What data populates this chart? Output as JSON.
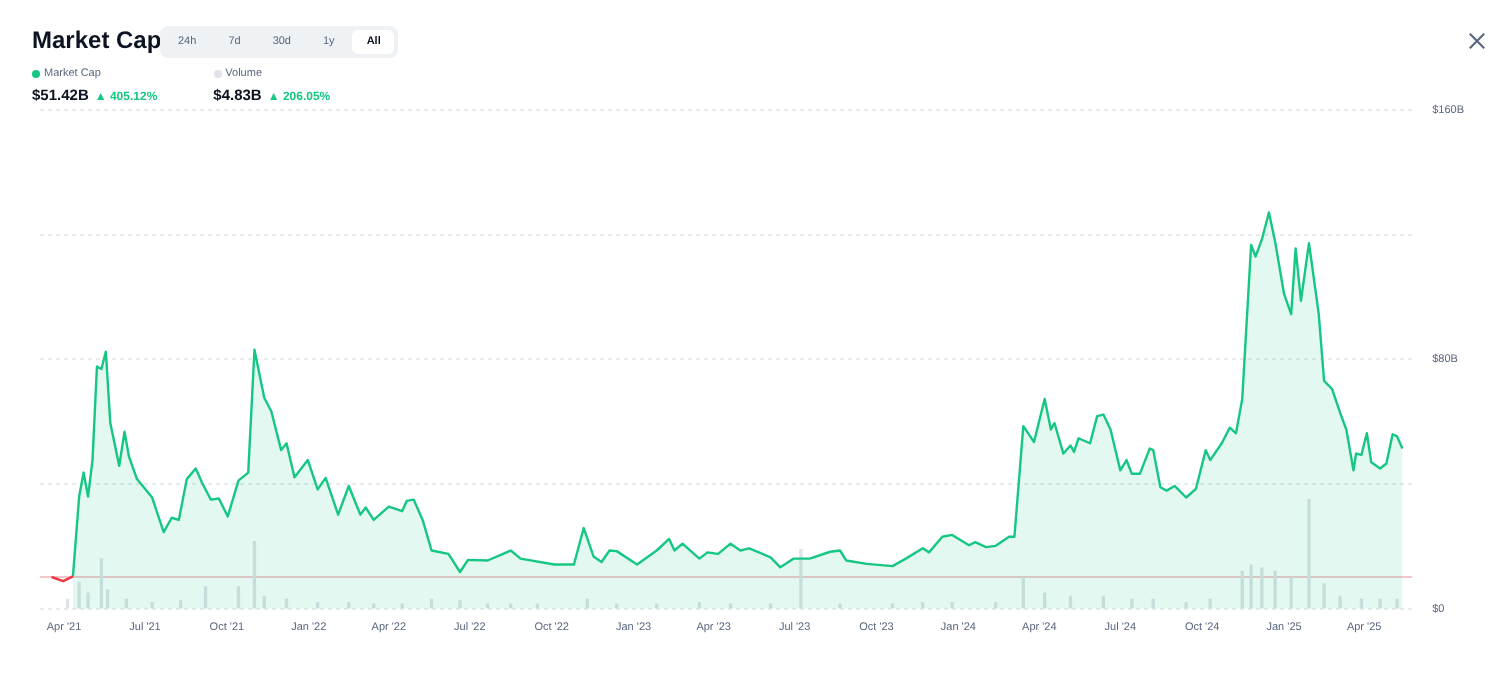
{
  "chart_data": {
    "type": "area",
    "title": "Market Cap",
    "annotations": [
      "24h",
      "7d",
      "30d",
      "1y",
      "All",
      "$51.42B",
      "▲ 405.12%",
      "$4.83B",
      "▲ 206.05%"
    ],
    "xlim": [
      "2021-03-05",
      "2025-05-25"
    ],
    "xticks": [
      {
        "value": "2021-04-01",
        "label": "Apr '21"
      },
      {
        "value": "2021-07-01",
        "label": "Jul '21"
      },
      {
        "value": "2021-10-01",
        "label": "Oct '21"
      },
      {
        "value": "2022-01-01",
        "label": "Jan '22"
      },
      {
        "value": "2022-04-01",
        "label": "Apr '22"
      },
      {
        "value": "2022-07-01",
        "label": "Jul '22"
      },
      {
        "value": "2022-10-01",
        "label": "Oct '22"
      },
      {
        "value": "2023-01-01",
        "label": "Jan '23"
      },
      {
        "value": "2023-04-01",
        "label": "Apr '23"
      },
      {
        "value": "2023-07-01",
        "label": "Jul '23"
      },
      {
        "value": "2023-10-01",
        "label": "Oct '23"
      },
      {
        "value": "2024-01-01",
        "label": "Jan '24"
      },
      {
        "value": "2024-04-01",
        "label": "Apr '24"
      },
      {
        "value": "2024-07-01",
        "label": "Jul '24"
      },
      {
        "value": "2024-10-01",
        "label": "Oct '24"
      },
      {
        "value": "2025-01-01",
        "label": "Jan '25"
      },
      {
        "value": "2025-04-01",
        "label": "Apr '25"
      }
    ],
    "ylim": [
      0,
      160
    ],
    "yticks": [
      {
        "value": 0,
        "label": "$0"
      },
      {
        "value": 40,
        "label": null
      },
      {
        "value": 80,
        "label": "$80B"
      },
      {
        "value": 120,
        "label": null
      },
      {
        "value": 160,
        "label": "$160B"
      }
    ],
    "grid": "y",
    "legend": "top left",
    "marker": "none",
    "ref_lines": [
      {
        "axis": "y",
        "value": 10.2,
        "label": null,
        "color": "#f4c7cb"
      }
    ],
    "series": [
      {
        "type": "line",
        "color": "#ea3943",
        "x": [
          "2021-03-18",
          "2021-03-31",
          "2021-04-11"
        ],
        "values": [
          10.2,
          8.9,
          10.4
        ]
      },
      {
        "name": "Market Cap",
        "color": "#16c784",
        "x": [
          "2021-04-11",
          "2021-04-18",
          "2021-04-23",
          "2021-04-28",
          "2021-05-03",
          "2021-05-08",
          "2021-05-13",
          "2021-05-18",
          "2021-05-23",
          "2021-06-02",
          "2021-06-08",
          "2021-06-13",
          "2021-06-22",
          "2021-07-09",
          "2021-07-22",
          "2021-07-31",
          "2021-08-08",
          "2021-08-17",
          "2021-08-27",
          "2021-09-03",
          "2021-09-13",
          "2021-09-22",
          "2021-10-02",
          "2021-10-14",
          "2021-10-25",
          "2021-11-01",
          "2021-11-12",
          "2021-11-20",
          "2021-12-01",
          "2021-12-07",
          "2021-12-16",
          "2021-12-31",
          "2022-01-11",
          "2022-01-20",
          "2022-02-03",
          "2022-02-15",
          "2022-02-28",
          "2022-03-06",
          "2022-03-15",
          "2022-04-01",
          "2022-04-16",
          "2022-04-21",
          "2022-04-29",
          "2022-05-09",
          "2022-05-19",
          "2022-06-07",
          "2022-06-20",
          "2022-06-29",
          "2022-07-21",
          "2022-08-16",
          "2022-08-27",
          "2022-10-04",
          "2022-10-26",
          "2022-11-06",
          "2022-11-17",
          "2022-11-26",
          "2022-12-05",
          "2022-12-13",
          "2023-01-05",
          "2023-01-27",
          "2023-02-10",
          "2023-02-16",
          "2023-02-25",
          "2023-03-16",
          "2023-03-25",
          "2023-04-06",
          "2023-04-20",
          "2023-05-01",
          "2023-05-11",
          "2023-06-04",
          "2023-06-15",
          "2023-06-30",
          "2023-07-18",
          "2023-08-10",
          "2023-08-21",
          "2023-08-28",
          "2023-09-20",
          "2023-10-19",
          "2023-11-03",
          "2023-11-22",
          "2023-11-29",
          "2023-12-14",
          "2023-12-25",
          "2024-01-13",
          "2024-01-20",
          "2024-02-01",
          "2024-02-12",
          "2024-02-27",
          "2024-03-04",
          "2024-03-14",
          "2024-03-26",
          "2024-04-07",
          "2024-04-14",
          "2024-04-18",
          "2024-04-28",
          "2024-05-06",
          "2024-05-10",
          "2024-05-15",
          "2024-05-28",
          "2024-06-05",
          "2024-06-12",
          "2024-06-20",
          "2024-07-01",
          "2024-07-08",
          "2024-07-14",
          "2024-07-23",
          "2024-08-03",
          "2024-08-07",
          "2024-08-15",
          "2024-08-22",
          "2024-08-31",
          "2024-09-13",
          "2024-09-24",
          "2024-10-05",
          "2024-10-10",
          "2024-10-23",
          "2024-11-01",
          "2024-11-08",
          "2024-11-15",
          "2024-11-25",
          "2024-11-30",
          "2024-12-07",
          "2024-12-15",
          "2024-12-22",
          "2025-01-01",
          "2025-01-09",
          "2025-01-14",
          "2025-01-20",
          "2025-01-29",
          "2025-02-09",
          "2025-02-15",
          "2025-02-24",
          "2025-03-05",
          "2025-03-12",
          "2025-03-20",
          "2025-03-23",
          "2025-03-29",
          "2025-04-04",
          "2025-04-09",
          "2025-04-19",
          "2025-04-26",
          "2025-05-03",
          "2025-05-08",
          "2025-05-14"
        ],
        "values": [
          10.4,
          36,
          43.7,
          36,
          47.7,
          77.7,
          76.9,
          82.5,
          59.6,
          45.9,
          56.8,
          48.8,
          41.6,
          35.7,
          24.6,
          29.2,
          28.5,
          41.6,
          45,
          40.5,
          35,
          35.4,
          29.6,
          41.1,
          43.7,
          83.1,
          67.7,
          63.3,
          50.9,
          53.1,
          42.2,
          47.7,
          38.3,
          42,
          30.2,
          39.4,
          30.2,
          32.5,
          28.5,
          32.8,
          31.3,
          34.6,
          35,
          28.5,
          18.7,
          17.6,
          11.8,
          15.7,
          15.5,
          18.7,
          16.1,
          14.2,
          14.2,
          25.9,
          16.8,
          15,
          18.7,
          18.5,
          14.2,
          18.7,
          22.4,
          18.7,
          20.9,
          16.1,
          18.1,
          17.6,
          20.9,
          18.7,
          19.4,
          16.5,
          13.3,
          16.1,
          16.1,
          18.3,
          18.7,
          15.5,
          14.4,
          13.7,
          16.1,
          19.4,
          18.1,
          23.1,
          23.7,
          20.4,
          21.4,
          19.8,
          20.2,
          23.1,
          23.1,
          58.6,
          53.5,
          67.3,
          57.5,
          59.6,
          49.8,
          52.4,
          50.3,
          54.7,
          53.1,
          61.8,
          62.3,
          57.5,
          44.4,
          47.7,
          43.3,
          43.3,
          51.4,
          50.9,
          39,
          37.9,
          39.4,
          35.7,
          38.5,
          50.9,
          47.7,
          53.1,
          58.1,
          56.3,
          67.3,
          116.7,
          113,
          118.4,
          127.1,
          117.7,
          101,
          94.5,
          115.6,
          98.8,
          117.3,
          94.5,
          73.1,
          70.5,
          62.9,
          57.5,
          44.4,
          49.8,
          49.4,
          56.3,
          47,
          45,
          46.6,
          56,
          55.3,
          51.4
        ]
      },
      {
        "name": "Volume",
        "type": "bar",
        "color": "#dfe2e8",
        "x": [
          "2021-04-05",
          "2021-04-18",
          "2021-04-28",
          "2021-05-13",
          "2021-05-20",
          "2021-06-10",
          "2021-07-09",
          "2021-08-10",
          "2021-09-07",
          "2021-10-14",
          "2021-11-01",
          "2021-11-12",
          "2021-12-07",
          "2022-01-11",
          "2022-02-15",
          "2022-03-15",
          "2022-04-16",
          "2022-05-19",
          "2022-06-20",
          "2022-07-21",
          "2022-08-16",
          "2022-09-15",
          "2022-11-10",
          "2022-12-13",
          "2023-01-27",
          "2023-03-16",
          "2023-04-20",
          "2023-06-04",
          "2023-07-08",
          "2023-08-21",
          "2023-10-19",
          "2023-11-22",
          "2023-12-25",
          "2024-02-12",
          "2024-03-14",
          "2024-04-07",
          "2024-05-06",
          "2024-06-12",
          "2024-07-14",
          "2024-08-07",
          "2024-09-13",
          "2024-10-10",
          "2024-11-15",
          "2024-11-25",
          "2024-12-07",
          "2024-12-22",
          "2025-01-09",
          "2025-01-29",
          "2025-02-15",
          "2025-03-05",
          "2025-03-29",
          "2025-04-19",
          "2025-05-08"
        ],
        "values": [
          3,
          8.5,
          5,
          16,
          6,
          3,
          2,
          2.5,
          7,
          7,
          21.5,
          4,
          3,
          2,
          2,
          1.5,
          1.5,
          3,
          2.5,
          1.5,
          1.5,
          1.5,
          3,
          1.5,
          1.5,
          2,
          1.5,
          1.5,
          19,
          1.5,
          1.5,
          2,
          2,
          2,
          10,
          5,
          4,
          4,
          3,
          3,
          2,
          3,
          12,
          14,
          13,
          12,
          10,
          35,
          8,
          4,
          3,
          3,
          3
        ]
      }
    ]
  }
}
